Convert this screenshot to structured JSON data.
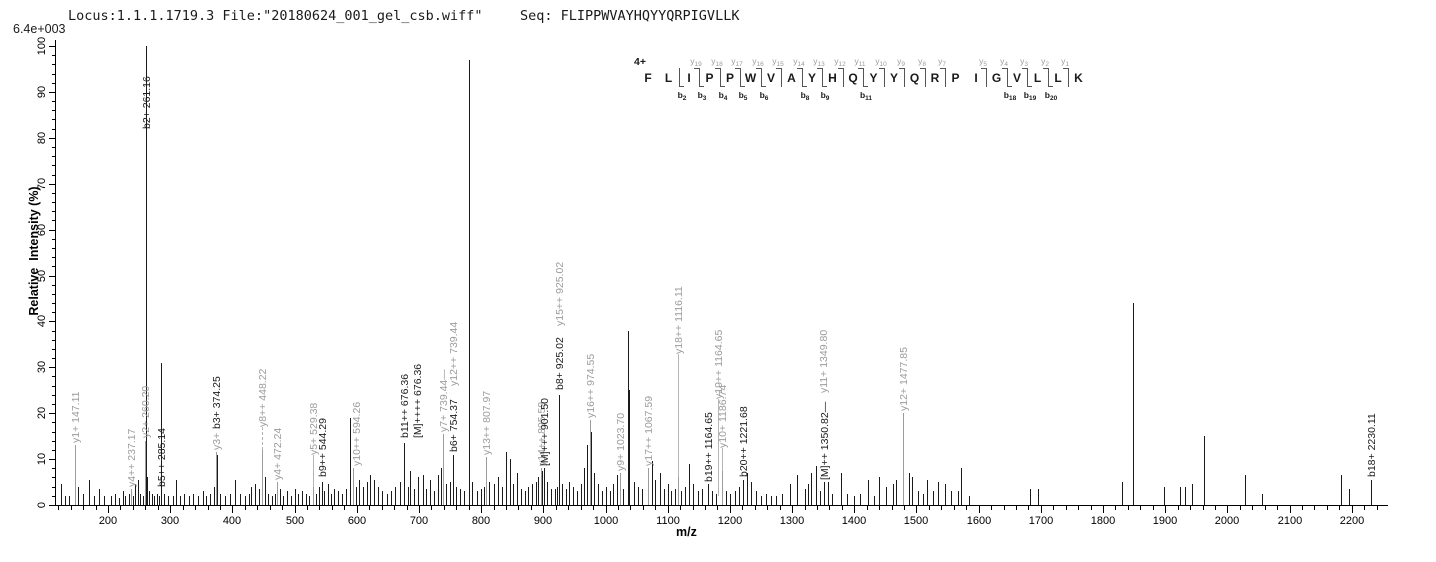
{
  "header": {
    "locus_file": "Locus:1.1.1.1719.3 File:\"20180624_001_gel_csb.wiff\"",
    "seq_text": "Seq: FLIPPWVAYHQYYQRPIGVLLK",
    "max_intensity": "6.4e+003"
  },
  "axes": {
    "x_title": "m/z",
    "y_title": "Relative  Intensity (%)"
  },
  "ladder": {
    "charge_label": "4+",
    "residues": [
      "F",
      "L",
      "I",
      "P",
      "P",
      "W",
      "V",
      "A",
      "Y",
      "H",
      "Q",
      "Y",
      "Y",
      "Q",
      "R",
      "P",
      "I",
      "G",
      "V",
      "L",
      "L",
      "K"
    ],
    "y_ions": [
      {
        "n": 19,
        "gap": 3
      },
      {
        "n": 18,
        "gap": 4
      },
      {
        "n": 17,
        "gap": 5
      },
      {
        "n": 16,
        "gap": 6
      },
      {
        "n": 15,
        "gap": 7
      },
      {
        "n": 14,
        "gap": 8
      },
      {
        "n": 13,
        "gap": 9
      },
      {
        "n": 12,
        "gap": 10
      },
      {
        "n": 11,
        "gap": 11
      },
      {
        "n": 10,
        "gap": 12
      },
      {
        "n": 9,
        "gap": 13
      },
      {
        "n": 8,
        "gap": 14
      },
      {
        "n": 7,
        "gap": 15
      },
      {
        "n": 5,
        "gap": 17
      },
      {
        "n": 4,
        "gap": 18
      },
      {
        "n": 3,
        "gap": 19
      },
      {
        "n": 2,
        "gap": 20
      },
      {
        "n": 1,
        "gap": 21
      }
    ],
    "b_ions": [
      {
        "n": 2,
        "gap": 2
      },
      {
        "n": 3,
        "gap": 3
      },
      {
        "n": 4,
        "gap": 4
      },
      {
        "n": 5,
        "gap": 5
      },
      {
        "n": 6,
        "gap": 6
      },
      {
        "n": 8,
        "gap": 8
      },
      {
        "n": 9,
        "gap": 9
      },
      {
        "n": 11,
        "gap": 11
      },
      {
        "n": 18,
        "gap": 18
      },
      {
        "n": 19,
        "gap": 19
      },
      {
        "n": 20,
        "gap": 20
      }
    ]
  },
  "chart_data": {
    "type": "bar",
    "title": "MS/MS fragment spectrum",
    "xlabel": "m/z",
    "ylabel": "Relative  Intensity (%)",
    "xlim": [
      115,
      2255
    ],
    "ylim": [
      0,
      100
    ],
    "x_major_ticks": {
      "start": 200,
      "end": 2200,
      "step": 100
    },
    "x_minor_step": 20,
    "y_major_step": 10,
    "y_minor_step": 2,
    "grid": false,
    "colors": {
      "b_ion": "#1b1b1b",
      "y_ion": "#9c9c9c"
    },
    "labeled_peaks": [
      {
        "mz": 147.11,
        "intensity": 13,
        "label": "y1+ 147.11",
        "color": "gray",
        "lab": 13.5
      },
      {
        "mz": 237.17,
        "intensity": 3.5,
        "label": "y4++ 237.17",
        "color": "gray",
        "lab": 4
      },
      {
        "mz": 260.2,
        "intensity": 14,
        "label": "y2+ 260.20",
        "color": "gray",
        "lab": 14.5
      },
      {
        "mz": 261.16,
        "intensity": 100,
        "label": "b2+ 261.16",
        "color": "black",
        "lab": 82
      },
      {
        "mz": 285.14,
        "intensity": 31,
        "label": "b5++ 285.14",
        "color": "black",
        "lab": 4
      },
      {
        "mz": 373.3,
        "intensity": 8,
        "label": "",
        "color": "gray",
        "lab": 0
      },
      {
        "mz": 374.25,
        "intensity": 11.5,
        "label": "y3+",
        "color": "gray",
        "lab": 12
      },
      {
        "mz": 374.25,
        "intensity": 11.5,
        "label": "b3+ 374.25",
        "color": "black",
        "lab": 16.5,
        "nopeak": true
      },
      {
        "mz": 448.22,
        "intensity": 12,
        "label": "y8++ 448.22",
        "color": "gray",
        "lab": 17,
        "lead": true,
        "dash": true
      },
      {
        "mz": 472.24,
        "intensity": 5,
        "label": "y4+ 472.24",
        "color": "gray",
        "lab": 5.5
      },
      {
        "mz": 529.38,
        "intensity": 4,
        "label": "y5+ 529.38",
        "color": "gray",
        "lab": 11,
        "lead": true
      },
      {
        "mz": 544.29,
        "intensity": 5,
        "label": "b9++ 544.29",
        "color": "black",
        "lab": 6
      },
      {
        "mz": 594.26,
        "intensity": 8,
        "label": "y10++ 594.26",
        "color": "gray",
        "lab": 8.5,
        "dx": 3
      },
      {
        "mz": 676.36,
        "intensity": 13.5,
        "label": "b11++ 676.36",
        "color": "black",
        "lab": 14.5
      },
      {
        "mz": 676.36,
        "intensity": 13.5,
        "label": "[M]++++ 676.36",
        "color": "black",
        "lab": 14.5,
        "dx": 13,
        "nopeak": true
      },
      {
        "mz": 739.44,
        "intensity": 15.5,
        "label": "y7+ 739.44—",
        "color": "gray",
        "lab": 16
      },
      {
        "mz": 739.44,
        "intensity": 15.5,
        "label": "y12++ 739.44",
        "color": "gray",
        "lab": 26,
        "dx": 10,
        "nopeak": true
      },
      {
        "mz": 754.37,
        "intensity": 11,
        "label": "b6+ 754.37",
        "color": "black",
        "lab": 11.5
      },
      {
        "mz": 807.97,
        "intensity": 10.5,
        "label": "y13++ 807.97",
        "color": "gray",
        "lab": 11
      },
      {
        "mz": 895.59,
        "intensity": 8,
        "label": "y14++ 895.59",
        "color": "gray",
        "lab": 8.5
      },
      {
        "mz": 901.5,
        "intensity": 8,
        "label": "[M]+++ 901.50",
        "color": "black",
        "lab": 8.5
      },
      {
        "mz": 925.02,
        "intensity": 24,
        "label": "b8+ 925.02",
        "color": "black",
        "lab": 25
      },
      {
        "mz": 925.02,
        "intensity": 24,
        "label": "y15++ 925.02",
        "color": "gray",
        "lab": 39,
        "nopeak": true
      },
      {
        "mz": 974.55,
        "intensity": 18.5,
        "label": "y16++ 974.55",
        "color": "gray",
        "lab": 19
      },
      {
        "mz": 1023.7,
        "intensity": 7,
        "label": "y9+ 1023.70",
        "color": "gray",
        "lab": 7.5
      },
      {
        "mz": 1067.59,
        "intensity": 8,
        "label": "y17++ 1067.59",
        "color": "gray",
        "lab": 8.5
      },
      {
        "mz": 1116.11,
        "intensity": 6,
        "label": "y18++ 1116.11",
        "color": "gray",
        "lab": 33,
        "lead": true
      },
      {
        "mz": 1164.65,
        "intensity": 4.5,
        "label": "b19++ 1164.65",
        "color": "black",
        "lab": 5
      },
      {
        "mz": 1164.65,
        "intensity": 4.5,
        "label": "y19++ 1164.65",
        "color": "gray",
        "lab": 23,
        "dx": 10,
        "nopeak": true,
        "lead": true,
        "lead_from": 2
      },
      {
        "mz": 1186.74,
        "intensity": 7.5,
        "label": "y10+ 1186.74",
        "color": "gray",
        "lab": 12.5,
        "lead": true
      },
      {
        "mz": 1221.68,
        "intensity": 5.5,
        "label": "b20++ 1221.68",
        "color": "black",
        "lab": 6
      },
      {
        "mz": 1350.82,
        "intensity": 5,
        "label": "[M]++ 1350.82—",
        "color": "black",
        "lab": 5.5
      },
      {
        "mz": 1349.8,
        "intensity": 5,
        "label": "y11+ 1349.80",
        "color": "gray",
        "lab": 24.5,
        "nopeak": true
      },
      {
        "mz": 1477.85,
        "intensity": 20,
        "label": "y12+ 1477.85",
        "color": "gray",
        "lab": 20.5
      },
      {
        "mz": 2230.11,
        "intensity": 5.5,
        "label": "b18+ 2230.11",
        "color": "black",
        "lab": 6
      }
    ],
    "background_peaks": [
      [
        125,
        4.5
      ],
      [
        131,
        2
      ],
      [
        138,
        2
      ],
      [
        152,
        4
      ],
      [
        160,
        2.5
      ],
      [
        170,
        5.5
      ],
      [
        178,
        2
      ],
      [
        186,
        3.5
      ],
      [
        194,
        2
      ],
      [
        205,
        2
      ],
      [
        212,
        2.5
      ],
      [
        218,
        1.5
      ],
      [
        224,
        3
      ],
      [
        228,
        2
      ],
      [
        233,
        2.5
      ],
      [
        241,
        2
      ],
      [
        244,
        4.5
      ],
      [
        248,
        5.5
      ],
      [
        252,
        2.5
      ],
      [
        256,
        2
      ],
      [
        263,
        6
      ],
      [
        266,
        3
      ],
      [
        270,
        2.5
      ],
      [
        274,
        2
      ],
      [
        278,
        2.5
      ],
      [
        282,
        2
      ],
      [
        290,
        2.5
      ],
      [
        296,
        2
      ],
      [
        304,
        2
      ],
      [
        310,
        5.5
      ],
      [
        316,
        2
      ],
      [
        322,
        2.5
      ],
      [
        330,
        2
      ],
      [
        336,
        2.5
      ],
      [
        344,
        2
      ],
      [
        352,
        3
      ],
      [
        358,
        2
      ],
      [
        364,
        2.5
      ],
      [
        370,
        4
      ],
      [
        375.3,
        11
      ],
      [
        380,
        2.5
      ],
      [
        388,
        2
      ],
      [
        396,
        2.5
      ],
      [
        405,
        5.5
      ],
      [
        412,
        2.5
      ],
      [
        420,
        2
      ],
      [
        426,
        2.5
      ],
      [
        430,
        4
      ],
      [
        437,
        4.5
      ],
      [
        443,
        3.5
      ],
      [
        452,
        6
      ],
      [
        457,
        2.5
      ],
      [
        463,
        2
      ],
      [
        468,
        2.5
      ],
      [
        476,
        3.5
      ],
      [
        482,
        2
      ],
      [
        488,
        3
      ],
      [
        494,
        2
      ],
      [
        500,
        3.5
      ],
      [
        506,
        2.5
      ],
      [
        512,
        3
      ],
      [
        518,
        2.5
      ],
      [
        524,
        2
      ],
      [
        534,
        2.5
      ],
      [
        540,
        4
      ],
      [
        547,
        3
      ],
      [
        553,
        4.5
      ],
      [
        558,
        2.5
      ],
      [
        564,
        3.5
      ],
      [
        570,
        3
      ],
      [
        576,
        2.5
      ],
      [
        582,
        3.5
      ],
      [
        589,
        19
      ],
      [
        598,
        4
      ],
      [
        604,
        5.5
      ],
      [
        610,
        4
      ],
      [
        616,
        5
      ],
      [
        622,
        6.5
      ],
      [
        628,
        5.5
      ],
      [
        634,
        4
      ],
      [
        640,
        3
      ],
      [
        648,
        2.5
      ],
      [
        655,
        3
      ],
      [
        662,
        4
      ],
      [
        670,
        5
      ],
      [
        682,
        4
      ],
      [
        686,
        7.5
      ],
      [
        692,
        3.5
      ],
      [
        699,
        6
      ],
      [
        707,
        6.5
      ],
      [
        712,
        3.5
      ],
      [
        718,
        5.5
      ],
      [
        724,
        3
      ],
      [
        731,
        6.5
      ],
      [
        736,
        8
      ],
      [
        744,
        4.5
      ],
      [
        750,
        5
      ],
      [
        760,
        4
      ],
      [
        766,
        3.5
      ],
      [
        772,
        3
      ],
      [
        780.5,
        97
      ],
      [
        786,
        5
      ],
      [
        793,
        3
      ],
      [
        800,
        3.5
      ],
      [
        804,
        4
      ],
      [
        813,
        5
      ],
      [
        820,
        4.5
      ],
      [
        827,
        6
      ],
      [
        833,
        4
      ],
      [
        840,
        11.5
      ],
      [
        846,
        10
      ],
      [
        852,
        4.5
      ],
      [
        858,
        7
      ],
      [
        864,
        3.5
      ],
      [
        870,
        3
      ],
      [
        876,
        4
      ],
      [
        882,
        4.5
      ],
      [
        888,
        5
      ],
      [
        892,
        6
      ],
      [
        898,
        7.5
      ],
      [
        906,
        5
      ],
      [
        912,
        3.5
      ],
      [
        918,
        3.5
      ],
      [
        922,
        4
      ],
      [
        930,
        4.5
      ],
      [
        936,
        3.5
      ],
      [
        942,
        5
      ],
      [
        948,
        4
      ],
      [
        954,
        3
      ],
      [
        960,
        4.5
      ],
      [
        966,
        8
      ],
      [
        971,
        13
      ],
      [
        977,
        16
      ],
      [
        982,
        7
      ],
      [
        988,
        4.5
      ],
      [
        994,
        3
      ],
      [
        1000,
        4
      ],
      [
        1007,
        3
      ],
      [
        1012,
        4.5
      ],
      [
        1018,
        6.5
      ],
      [
        1028,
        3.5
      ],
      [
        1036,
        38
      ],
      [
        1037.5,
        25
      ],
      [
        1046,
        5
      ],
      [
        1052,
        4
      ],
      [
        1058,
        3.5
      ],
      [
        1074,
        9.5
      ],
      [
        1080,
        5.5
      ],
      [
        1088,
        7
      ],
      [
        1094,
        3.5
      ],
      [
        1100,
        4.5
      ],
      [
        1106,
        3
      ],
      [
        1112,
        3.5
      ],
      [
        1122,
        3
      ],
      [
        1128,
        4
      ],
      [
        1134,
        9
      ],
      [
        1140,
        4.5
      ],
      [
        1148,
        3
      ],
      [
        1155,
        3.5
      ],
      [
        1172,
        3
      ],
      [
        1178,
        2.5
      ],
      [
        1193,
        3
      ],
      [
        1200,
        2.5
      ],
      [
        1208,
        3
      ],
      [
        1215,
        4
      ],
      [
        1228,
        7
      ],
      [
        1234,
        5
      ],
      [
        1242,
        3
      ],
      [
        1250,
        2
      ],
      [
        1258,
        2.5
      ],
      [
        1266,
        2
      ],
      [
        1274,
        2
      ],
      [
        1284,
        2.5
      ],
      [
        1297,
        4.5
      ],
      [
        1308,
        6.5
      ],
      [
        1320,
        3.5
      ],
      [
        1325,
        4.5
      ],
      [
        1330,
        7
      ],
      [
        1338,
        8.5
      ],
      [
        1345,
        3
      ],
      [
        1358,
        5
      ],
      [
        1364,
        2.5
      ],
      [
        1378,
        7
      ],
      [
        1388,
        2.5
      ],
      [
        1400,
        2
      ],
      [
        1410,
        2.5
      ],
      [
        1422,
        5.5
      ],
      [
        1432,
        2
      ],
      [
        1440,
        6
      ],
      [
        1451,
        4
      ],
      [
        1462,
        4.5
      ],
      [
        1467,
        5.5
      ],
      [
        1488,
        7
      ],
      [
        1493,
        6
      ],
      [
        1502,
        3
      ],
      [
        1510,
        2.5
      ],
      [
        1517,
        5.5
      ],
      [
        1526,
        3
      ],
      [
        1534,
        5
      ],
      [
        1546,
        4.5
      ],
      [
        1556,
        3
      ],
      [
        1566,
        3
      ],
      [
        1571,
        8
      ],
      [
        1584,
        2
      ],
      [
        1683,
        3.5
      ],
      [
        1695,
        3.5
      ],
      [
        1830,
        5
      ],
      [
        1848,
        44
      ],
      [
        1898,
        4
      ],
      [
        1924,
        4
      ],
      [
        1932,
        4
      ],
      [
        1943,
        4.5
      ],
      [
        1962,
        15
      ],
      [
        2029,
        6.5
      ],
      [
        2056,
        2.5
      ],
      [
        2183,
        6.5
      ],
      [
        2196,
        3.5
      ]
    ]
  }
}
